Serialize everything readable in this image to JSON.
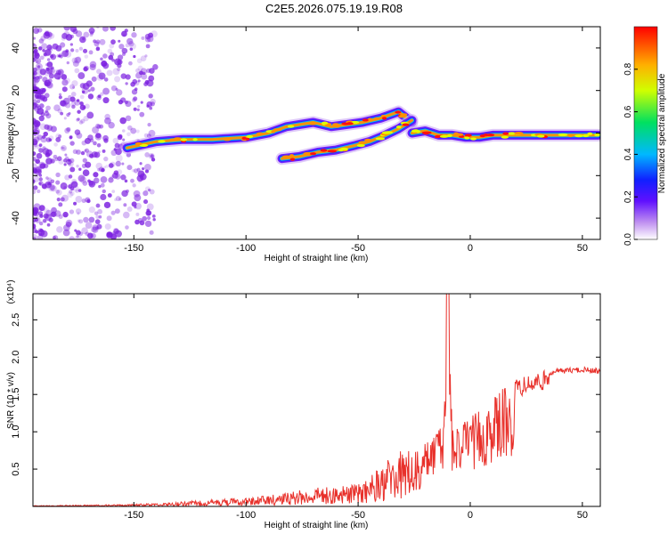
{
  "title": "C2E5.2026.075.19.19.R08",
  "colors": {
    "axis": "#000000",
    "snr_line": "#e8302a",
    "spectrogram_scatter": "#7b1fe0"
  },
  "chart_data": [
    {
      "type": "heatmap",
      "xlabel": "Height of straight line (km)",
      "ylabel": "Frequency (Hz)",
      "xlim": [
        -195,
        58
      ],
      "ylim": [
        -50,
        50
      ],
      "xticks": [
        "-150",
        "-100",
        "-50",
        "0",
        "50"
      ],
      "yticks": [
        "-40",
        "-20",
        "0",
        "20",
        "40"
      ],
      "colorbar": {
        "label": "Normalized spectral amplitude",
        "range": [
          0,
          1
        ],
        "ticks": [
          "0.0",
          "0.2",
          "0.4",
          "0.6",
          "0.8"
        ],
        "colormap": [
          "#ffffff",
          "#b070f0",
          "#3010ff",
          "#00c8ff",
          "#00ff40",
          "#ffff00",
          "#ff8000",
          "#ff0000"
        ]
      },
      "traces": [
        {
          "x": [
            -153,
            -140,
            -128,
            -115,
            -100,
            -90,
            -82,
            -70,
            -62,
            -55,
            -48,
            -40,
            -32,
            -26
          ],
          "y": [
            -7,
            -4,
            -3,
            -3,
            -2,
            0,
            3,
            5,
            3,
            4,
            5,
            7,
            10,
            5
          ]
        },
        {
          "x": [
            -84,
            -76,
            -68,
            -60,
            -52,
            -45,
            -38,
            -32,
            -26
          ],
          "y": [
            -12,
            -11,
            -9,
            -8,
            -6,
            -4,
            -1,
            2,
            6
          ]
        },
        {
          "x": [
            -26,
            -20,
            -14,
            -8,
            -2,
            4,
            10,
            20,
            30,
            40,
            50,
            57
          ],
          "y": [
            0,
            1,
            -1,
            -1,
            -2,
            -2,
            -1,
            -1,
            -1,
            -1,
            -1,
            -1
          ]
        }
      ]
    },
    {
      "type": "line",
      "xlabel": "Height of straight line (km)",
      "ylabel": "SNR (10 * v/v)",
      "y_multiplier": "(x10⁴)",
      "xlim": [
        -195,
        58
      ],
      "ylim": [
        0,
        2.85
      ],
      "xticks": [
        "-150",
        "-100",
        "-50",
        "0",
        "50"
      ],
      "yticks": [
        "0.5",
        "1.0",
        "1.5",
        "2.0",
        "2.5"
      ],
      "series": [
        {
          "x": [
            -195,
            -170,
            -150,
            -135,
            -120,
            -110,
            -100,
            -90,
            -80,
            -70,
            -60,
            -50,
            -45,
            -40,
            -35,
            -30,
            -25,
            -20,
            -15,
            -12,
            -10,
            -8,
            -5,
            0,
            5,
            10,
            15,
            20,
            25,
            30,
            35,
            40,
            45,
            50,
            58
          ],
          "y": [
            0.01,
            0.02,
            0.03,
            0.05,
            0.08,
            0.1,
            0.12,
            0.15,
            0.2,
            0.25,
            0.28,
            0.3,
            0.4,
            0.55,
            0.7,
            0.75,
            0.8,
            0.85,
            1.05,
            1.1,
            2.85,
            1.1,
            1.15,
            1.2,
            1.3,
            1.45,
            1.6,
            1.7,
            1.75,
            1.8,
            1.83,
            1.85,
            1.86,
            1.87,
            1.85
          ]
        }
      ]
    }
  ]
}
